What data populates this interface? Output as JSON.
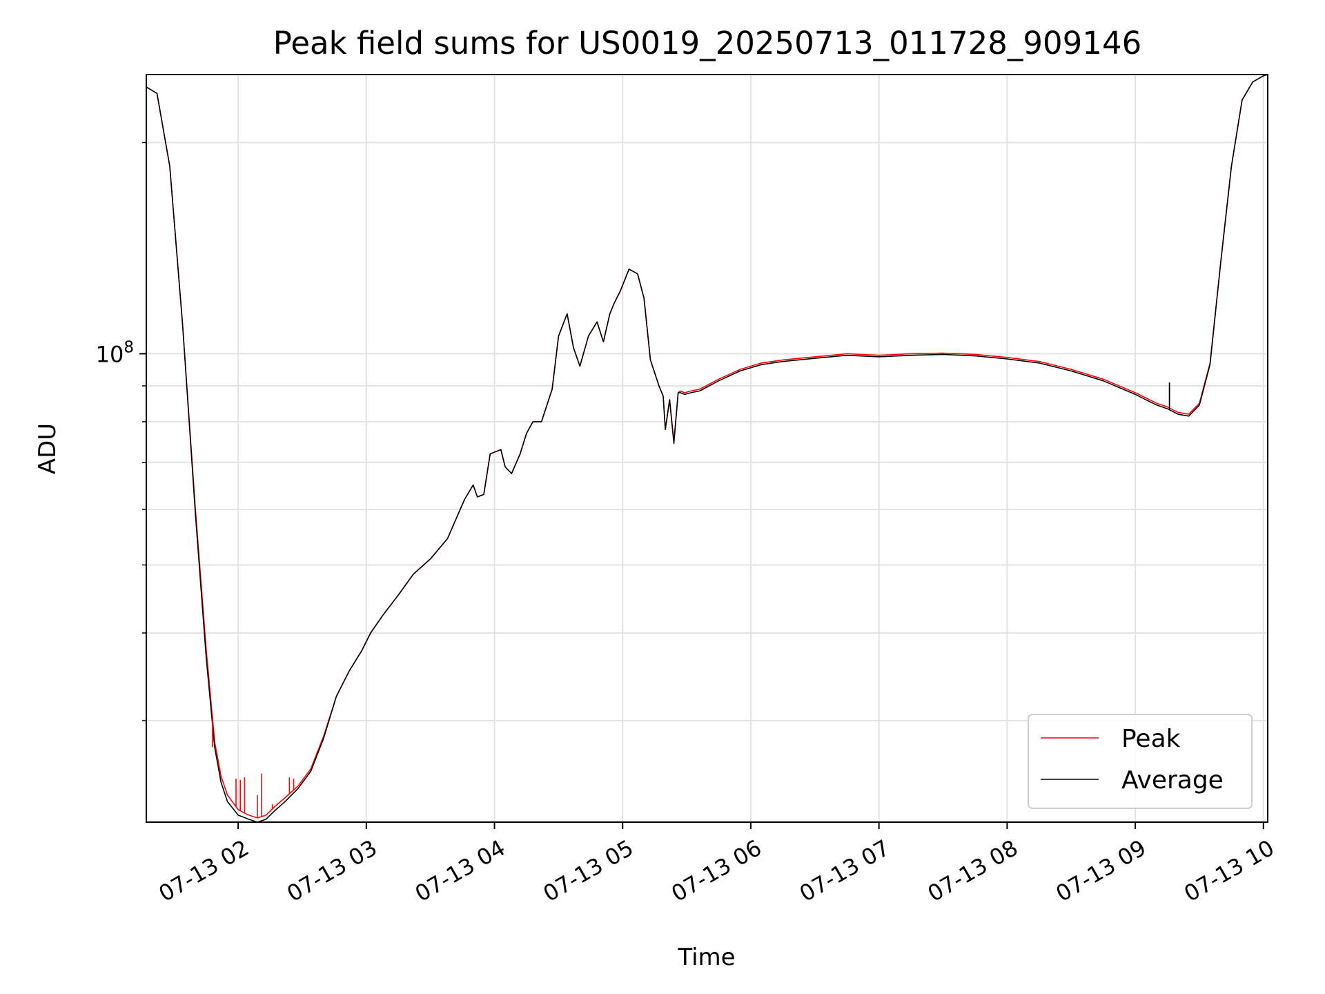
{
  "chart_data": {
    "type": "line",
    "title": "Peak field sums for US0019_20250713_011728_909146",
    "xlabel": "Time",
    "ylabel": "ADU",
    "y_scale": "log",
    "grid": true,
    "legend_position": "lower-right",
    "xlim": [
      "2025-07-13 01:17",
      "2025-07-13 10:02"
    ],
    "ylim": [
      21500000,
      250000000
    ],
    "x_ticks": [
      {
        "t": "2025-07-13 02:00",
        "label": "07-13 02"
      },
      {
        "t": "2025-07-13 03:00",
        "label": "07-13 03"
      },
      {
        "t": "2025-07-13 04:00",
        "label": "07-13 04"
      },
      {
        "t": "2025-07-13 05:00",
        "label": "07-13 05"
      },
      {
        "t": "2025-07-13 06:00",
        "label": "07-13 06"
      },
      {
        "t": "2025-07-13 07:00",
        "label": "07-13 07"
      },
      {
        "t": "2025-07-13 08:00",
        "label": "07-13 08"
      },
      {
        "t": "2025-07-13 09:00",
        "label": "07-13 09"
      },
      {
        "t": "2025-07-13 10:00",
        "label": "07-13 10"
      }
    ],
    "y_major_ticks": [
      {
        "value": 100000000,
        "base": "10",
        "exp": "8"
      }
    ],
    "y_minor_ticks": [
      30000000,
      40000000,
      50000000,
      60000000,
      70000000,
      80000000,
      90000000,
      200000000
    ],
    "series": [
      {
        "name": "Peak",
        "color": "#ff0000",
        "x": [
          "2025-07-13 01:17",
          "2025-07-13 01:22",
          "2025-07-13 01:28",
          "2025-07-13 01:34",
          "2025-07-13 01:40",
          "2025-07-13 01:45",
          "2025-07-13 01:49",
          "2025-07-13 01:52",
          "2025-07-13 01:55",
          "2025-07-13 02:00",
          "2025-07-13 02:05",
          "2025-07-13 02:09",
          "2025-07-13 02:13",
          "2025-07-13 02:17",
          "2025-07-13 02:22",
          "2025-07-13 02:28",
          "2025-07-13 02:34",
          "2025-07-13 02:40",
          "2025-07-13 02:46",
          "2025-07-13 02:52",
          "2025-07-13 02:58",
          "2025-07-13 03:02",
          "2025-07-13 03:08",
          "2025-07-13 03:15",
          "2025-07-13 03:22",
          "2025-07-13 03:30",
          "2025-07-13 03:38",
          "2025-07-13 03:46",
          "2025-07-13 03:50",
          "2025-07-13 03:52",
          "2025-07-13 03:55",
          "2025-07-13 03:58",
          "2025-07-13 04:03",
          "2025-07-13 04:05",
          "2025-07-13 04:08",
          "2025-07-13 04:12",
          "2025-07-13 04:15",
          "2025-07-13 04:18",
          "2025-07-13 04:22",
          "2025-07-13 04:27",
          "2025-07-13 04:30",
          "2025-07-13 04:34",
          "2025-07-13 04:37",
          "2025-07-13 04:40",
          "2025-07-13 04:44",
          "2025-07-13 04:48",
          "2025-07-13 04:51",
          "2025-07-13 04:54",
          "2025-07-13 04:56",
          "2025-07-13 04:59",
          "2025-07-13 05:03",
          "2025-07-13 05:07",
          "2025-07-13 05:10",
          "2025-07-13 05:13",
          "2025-07-13 05:17",
          "2025-07-13 05:19",
          "2025-07-13 05:20",
          "2025-07-13 05:22",
          "2025-07-13 05:24",
          "2025-07-13 05:26",
          "2025-07-13 05:27",
          "2025-07-13 05:29",
          "2025-07-13 05:32",
          "2025-07-13 05:36",
          "2025-07-13 05:45",
          "2025-07-13 05:55",
          "2025-07-13 06:05",
          "2025-07-13 06:15",
          "2025-07-13 06:30",
          "2025-07-13 06:45",
          "2025-07-13 07:00",
          "2025-07-13 07:15",
          "2025-07-13 07:30",
          "2025-07-13 07:45",
          "2025-07-13 08:00",
          "2025-07-13 08:15",
          "2025-07-13 08:30",
          "2025-07-13 08:45",
          "2025-07-13 09:00",
          "2025-07-13 09:10",
          "2025-07-13 09:15",
          "2025-07-13 09:20",
          "2025-07-13 09:25",
          "2025-07-13 09:30",
          "2025-07-13 09:35",
          "2025-07-13 09:40",
          "2025-07-13 09:45",
          "2025-07-13 09:50",
          "2025-07-13 09:55",
          "2025-07-13 10:00",
          "2025-07-13 10:02"
        ],
        "values": [
          240000000,
          235000000,
          185000000,
          110000000,
          60000000,
          38000000,
          28000000,
          25000000,
          23500000,
          22400000,
          22000000,
          21800000,
          22000000,
          22600000,
          23300000,
          24200000,
          25600000,
          28500000,
          32500000,
          35300000,
          37800000,
          40000000,
          42500000,
          45300000,
          48500000,
          51000000,
          54500000,
          62000000,
          65000000,
          62500000,
          63000000,
          72000000,
          73000000,
          69000000,
          67500000,
          72000000,
          77000000,
          80000000,
          80000000,
          89000000,
          106000000,
          114000000,
          102000000,
          96000000,
          106000000,
          111000000,
          104000000,
          114000000,
          118000000,
          123000000,
          132000000,
          130000000,
          120000000,
          98000000,
          90000000,
          87000000,
          78000000,
          86000000,
          75000000,
          88000000,
          88500000,
          88000000,
          88500000,
          89000000,
          92000000,
          95000000,
          97000000,
          98000000,
          99000000,
          100000000,
          99500000,
          100000000,
          100200000,
          99800000,
          98800000,
          97500000,
          95000000,
          92000000,
          88000000,
          85000000,
          84000000,
          82500000,
          82000000,
          85000000,
          97000000,
          135000000,
          185000000,
          230000000,
          244000000,
          249000000,
          250000000
        ]
      },
      {
        "name": "Average",
        "color": "#000000",
        "x": [
          "2025-07-13 01:17",
          "2025-07-13 01:22",
          "2025-07-13 01:28",
          "2025-07-13 01:34",
          "2025-07-13 01:40",
          "2025-07-13 01:45",
          "2025-07-13 01:49",
          "2025-07-13 01:52",
          "2025-07-13 01:55",
          "2025-07-13 02:00",
          "2025-07-13 02:05",
          "2025-07-13 02:09",
          "2025-07-13 02:13",
          "2025-07-13 02:17",
          "2025-07-13 02:22",
          "2025-07-13 02:28",
          "2025-07-13 02:34",
          "2025-07-13 02:40",
          "2025-07-13 02:46",
          "2025-07-13 02:52",
          "2025-07-13 02:58",
          "2025-07-13 03:02",
          "2025-07-13 03:08",
          "2025-07-13 03:15",
          "2025-07-13 03:22",
          "2025-07-13 03:30",
          "2025-07-13 03:38",
          "2025-07-13 03:46",
          "2025-07-13 03:50",
          "2025-07-13 03:52",
          "2025-07-13 03:55",
          "2025-07-13 03:58",
          "2025-07-13 04:03",
          "2025-07-13 04:05",
          "2025-07-13 04:08",
          "2025-07-13 04:12",
          "2025-07-13 04:15",
          "2025-07-13 04:18",
          "2025-07-13 04:22",
          "2025-07-13 04:27",
          "2025-07-13 04:30",
          "2025-07-13 04:34",
          "2025-07-13 04:37",
          "2025-07-13 04:40",
          "2025-07-13 04:44",
          "2025-07-13 04:48",
          "2025-07-13 04:51",
          "2025-07-13 04:54",
          "2025-07-13 04:56",
          "2025-07-13 04:59",
          "2025-07-13 05:03",
          "2025-07-13 05:07",
          "2025-07-13 05:10",
          "2025-07-13 05:13",
          "2025-07-13 05:17",
          "2025-07-13 05:19",
          "2025-07-13 05:20",
          "2025-07-13 05:22",
          "2025-07-13 05:24",
          "2025-07-13 05:26",
          "2025-07-13 05:27",
          "2025-07-13 05:29",
          "2025-07-13 05:32",
          "2025-07-13 05:36",
          "2025-07-13 05:45",
          "2025-07-13 05:55",
          "2025-07-13 06:05",
          "2025-07-13 06:15",
          "2025-07-13 06:30",
          "2025-07-13 06:45",
          "2025-07-13 07:00",
          "2025-07-13 07:15",
          "2025-07-13 07:30",
          "2025-07-13 07:45",
          "2025-07-13 08:00",
          "2025-07-13 08:15",
          "2025-07-13 08:30",
          "2025-07-13 08:45",
          "2025-07-13 09:00",
          "2025-07-13 09:10",
          "2025-07-13 09:15",
          "2025-07-13 09:20",
          "2025-07-13 09:25",
          "2025-07-13 09:30",
          "2025-07-13 09:35",
          "2025-07-13 09:40",
          "2025-07-13 09:45",
          "2025-07-13 09:50",
          "2025-07-13 09:55",
          "2025-07-13 10:00",
          "2025-07-13 10:02"
        ],
        "values": [
          240000000,
          235000000,
          185000000,
          110000000,
          59000000,
          37000000,
          27500000,
          24500000,
          23000000,
          22000000,
          21700000,
          21500000,
          21700000,
          22300000,
          23000000,
          24000000,
          25400000,
          28300000,
          32500000,
          35300000,
          37800000,
          40000000,
          42500000,
          45300000,
          48500000,
          51000000,
          54500000,
          62000000,
          65000000,
          62500000,
          63000000,
          72000000,
          73000000,
          69000000,
          67500000,
          72000000,
          77000000,
          80000000,
          80000000,
          89000000,
          106000000,
          114000000,
          102000000,
          96000000,
          106000000,
          111000000,
          104000000,
          114000000,
          118000000,
          123000000,
          132000000,
          130000000,
          120000000,
          98000000,
          90000000,
          87000000,
          78000000,
          86000000,
          74500000,
          88000000,
          88000000,
          87500000,
          88000000,
          88500000,
          91500000,
          94500000,
          96500000,
          97500000,
          98500000,
          99500000,
          99000000,
          99500000,
          99800000,
          99300000,
          98300000,
          97000000,
          94500000,
          91500000,
          87500000,
          84500000,
          83500000,
          82000000,
          81500000,
          84500000,
          96500000,
          135000000,
          185000000,
          230000000,
          244000000,
          249000000,
          250000000
        ]
      }
    ],
    "spikes": {
      "series": "Peak",
      "points": [
        {
          "t": "2025-07-13 01:48",
          "value": 27500000
        },
        {
          "t": "2025-07-13 01:59",
          "value": 24800000
        },
        {
          "t": "2025-07-13 02:01",
          "value": 24700000
        },
        {
          "t": "2025-07-13 02:03",
          "value": 24900000
        },
        {
          "t": "2025-07-13 02:09",
          "value": 23500000
        },
        {
          "t": "2025-07-13 02:11",
          "value": 25200000
        },
        {
          "t": "2025-07-13 02:16",
          "value": 22800000
        },
        {
          "t": "2025-07-13 02:24",
          "value": 24900000
        },
        {
          "t": "2025-07-13 02:26",
          "value": 24800000
        }
      ]
    },
    "average_spikes": [
      {
        "t": "2025-07-13 09:16",
        "value": 91000000
      }
    ]
  }
}
